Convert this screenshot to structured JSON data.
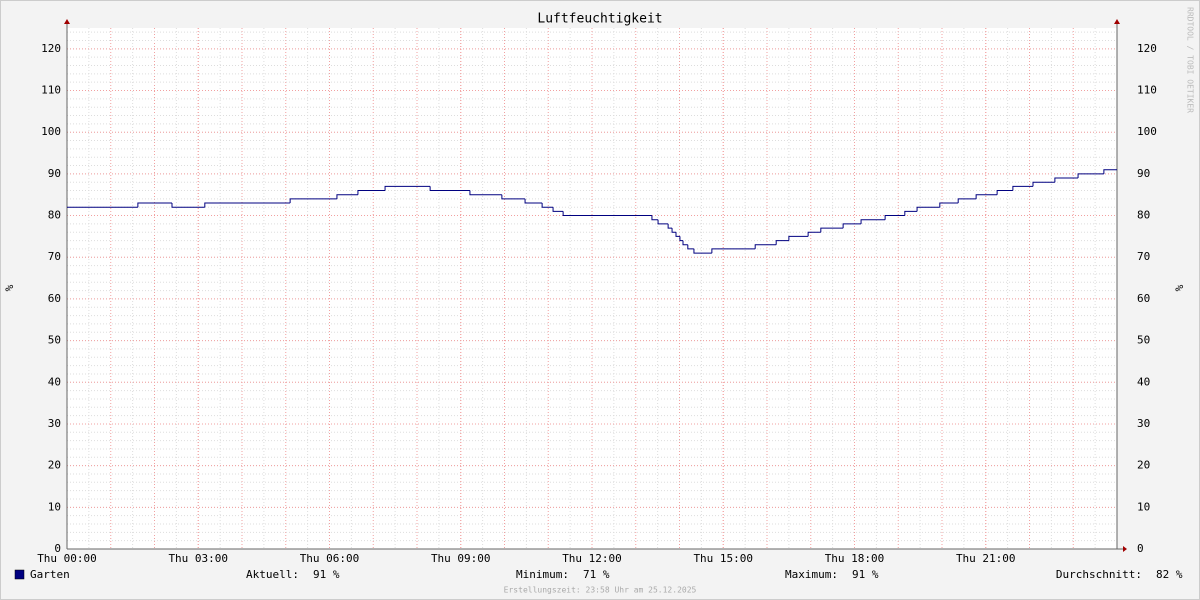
{
  "chart_data": {
    "type": "step",
    "title": "Luftfeuchtigkeit",
    "y_label": "%",
    "watermark": "RRDTOOL / TOBI OETIKER",
    "xlim": [
      0,
      24
    ],
    "xticks": [
      {
        "value": 0,
        "label": "Thu 00:00"
      },
      {
        "value": 3,
        "label": "Thu 03:00"
      },
      {
        "value": 6,
        "label": "Thu 06:00"
      },
      {
        "value": 9,
        "label": "Thu 09:00"
      },
      {
        "value": 12,
        "label": "Thu 12:00"
      },
      {
        "value": 15,
        "label": "Thu 15:00"
      },
      {
        "value": 18,
        "label": "Thu 18:00"
      },
      {
        "value": 21,
        "label": "Thu 21:00"
      }
    ],
    "ylim": [
      0,
      125
    ],
    "yticks": [
      0,
      10,
      20,
      30,
      40,
      50,
      60,
      70,
      80,
      90,
      100,
      110,
      120
    ],
    "grid": true,
    "x": [
      0,
      1.62,
      2.4,
      3.15,
      5.1,
      6.17,
      6.65,
      7.27,
      8.3,
      9.21,
      9.94,
      10.47,
      10.86,
      11.11,
      11.34,
      13.37,
      13.51,
      13.74,
      13.83,
      13.92,
      14.01,
      14.08,
      14.19,
      14.33,
      14.74,
      15.73,
      16.21,
      16.5,
      16.94,
      17.23,
      17.74,
      18.15,
      18.7,
      19.15,
      19.43,
      19.95,
      20.37,
      20.78,
      21.26,
      21.62,
      22.08,
      22.58,
      23.11,
      23.7,
      24
    ],
    "series": [
      {
        "name": "Garten",
        "color": "#000080",
        "values": [
          82,
          83,
          82,
          83,
          84,
          85,
          86,
          87,
          86,
          85,
          84,
          83,
          82,
          81,
          80,
          79,
          78,
          77,
          76,
          75,
          74,
          73,
          72,
          71,
          72,
          73,
          74,
          75,
          76,
          77,
          78,
          79,
          80,
          81,
          82,
          83,
          84,
          85,
          86,
          87,
          88,
          89,
          90,
          91,
          91
        ]
      }
    ],
    "stats": [
      {
        "label": "Aktuell:",
        "value": "91 %"
      },
      {
        "label": "Minimum:",
        "value": "71 %"
      },
      {
        "label": "Maximum:",
        "value": "91 %"
      },
      {
        "label": "Durchschnitt:",
        "value": "82 %"
      }
    ],
    "footer": "Erstellungszeit: 23:58 Uhr am 25.12.2025"
  }
}
